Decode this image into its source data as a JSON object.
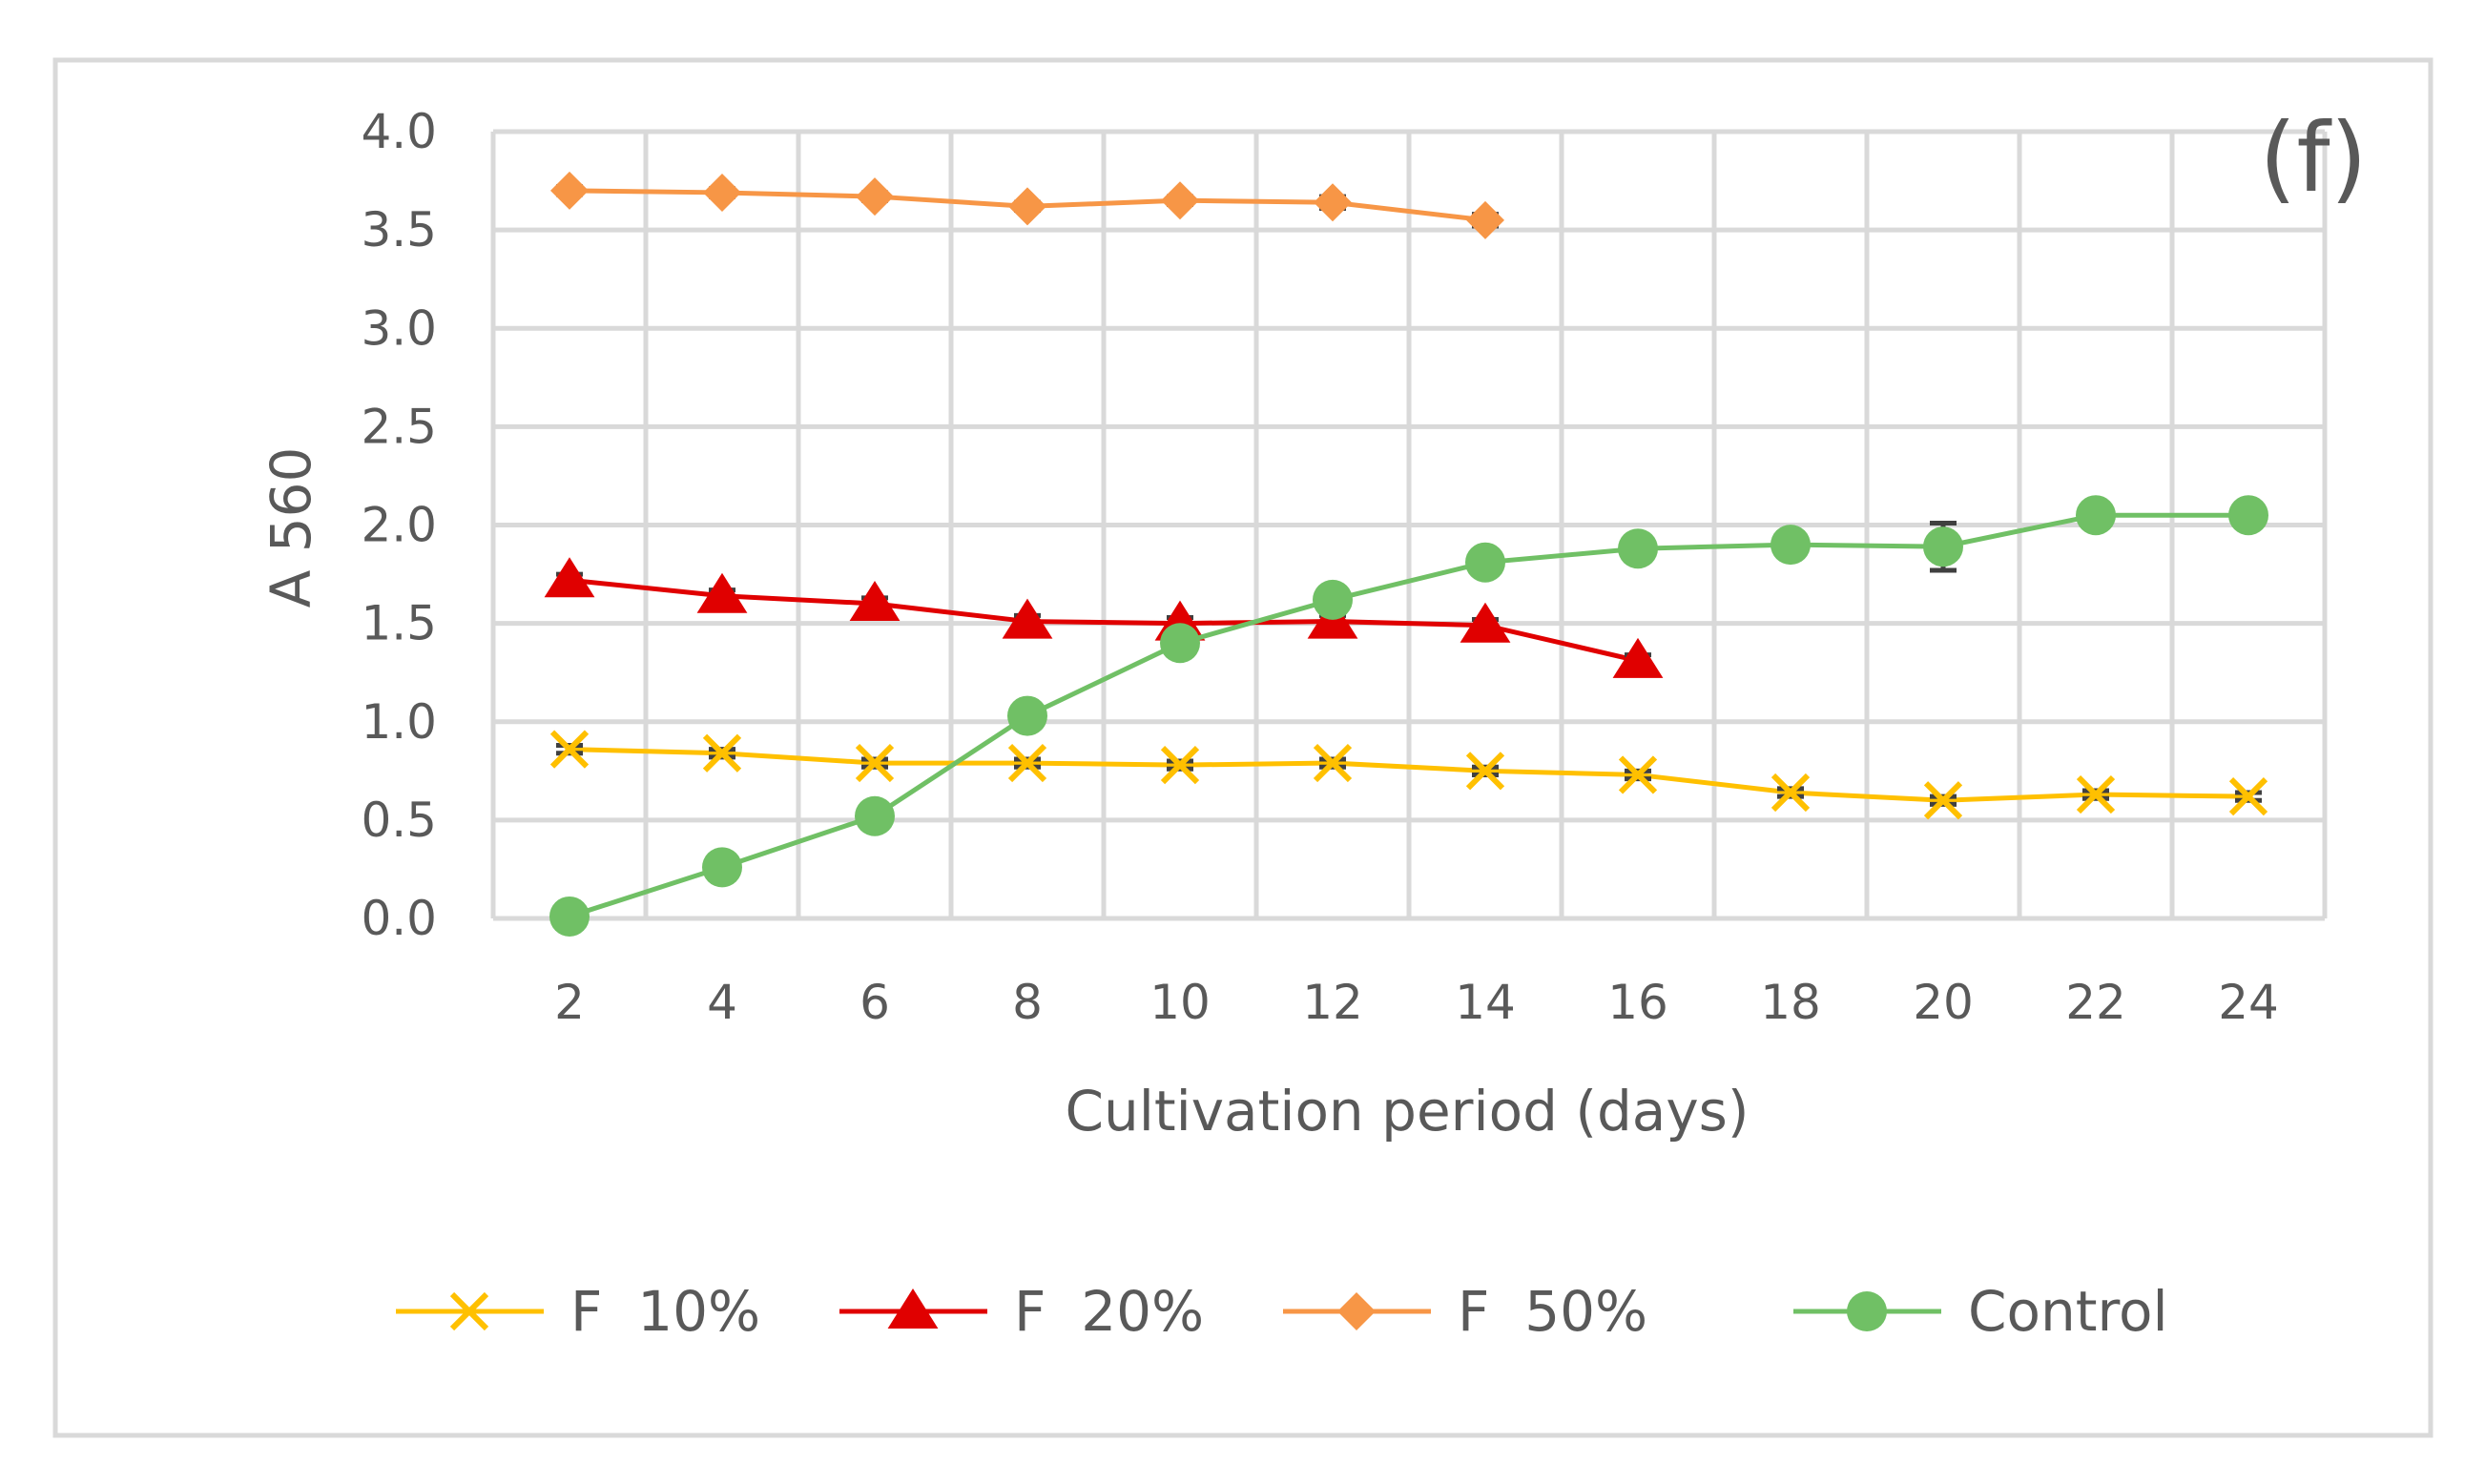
{
  "chart_data": {
    "type": "line",
    "panel_label": "(f)",
    "xlabel": "Cultivation period (days)",
    "ylabel": "A 560",
    "x": [
      2,
      4,
      6,
      8,
      10,
      12,
      14,
      16,
      18,
      20,
      22,
      24
    ],
    "x_tick_labels": [
      "2",
      "4",
      "6",
      "8",
      "10",
      "12",
      "14",
      "16",
      "18",
      "20",
      "22",
      "24"
    ],
    "ylim": [
      0,
      4
    ],
    "y_ticks": [
      0,
      0.5,
      1,
      1.5,
      2,
      2.5,
      3,
      3.5,
      4
    ],
    "y_tick_labels": [
      "0.0",
      "0.5",
      "1.0",
      "1.5",
      "2.0",
      "2.5",
      "3.0",
      "3.5",
      "4.0"
    ],
    "grid": true,
    "legend_position": "bottom",
    "series": [
      {
        "name": "F  10%",
        "color": "#ffc000",
        "marker": "x",
        "x": [
          2,
          4,
          6,
          8,
          10,
          12,
          14,
          16,
          18,
          20,
          22,
          24
        ],
        "values": [
          0.86,
          0.84,
          0.79,
          0.79,
          0.78,
          0.79,
          0.75,
          0.73,
          0.64,
          0.6,
          0.63,
          0.62
        ],
        "errors": [
          0.02,
          0.02,
          0.02,
          0.02,
          0.02,
          0.02,
          0.02,
          0.02,
          0.02,
          0.02,
          0.02,
          0.02
        ]
      },
      {
        "name": "F  20%",
        "color": "#e00000",
        "marker": "triangle",
        "x": [
          2,
          4,
          6,
          8,
          10,
          12,
          14,
          16
        ],
        "values": [
          1.72,
          1.64,
          1.6,
          1.51,
          1.5,
          1.51,
          1.49,
          1.31
        ],
        "errors": [
          0.03,
          0.03,
          0.03,
          0.03,
          0.03,
          0.03,
          0.03,
          0.03
        ]
      },
      {
        "name": "F  50%",
        "color": "#f79646",
        "marker": "diamond",
        "x": [
          2,
          4,
          6,
          8,
          10,
          12,
          14
        ],
        "values": [
          3.7,
          3.69,
          3.67,
          3.62,
          3.65,
          3.64,
          3.55
        ],
        "errors": [
          0.02,
          0.02,
          0.02,
          0.02,
          0.02,
          0.03,
          0.03
        ]
      },
      {
        "name": "Control",
        "color": "#70c065",
        "marker": "circle",
        "x": [
          2,
          4,
          6,
          8,
          10,
          12,
          14,
          16,
          18,
          20,
          22,
          24
        ],
        "values": [
          0.01,
          0.26,
          0.52,
          1.03,
          1.4,
          1.62,
          1.81,
          1.88,
          1.9,
          1.89,
          2.05,
          2.05
        ],
        "errors": [
          0.01,
          0.01,
          0.01,
          0.02,
          0.02,
          0.02,
          0.02,
          0.02,
          0.02,
          0.12,
          0.02,
          0.02
        ]
      }
    ]
  }
}
